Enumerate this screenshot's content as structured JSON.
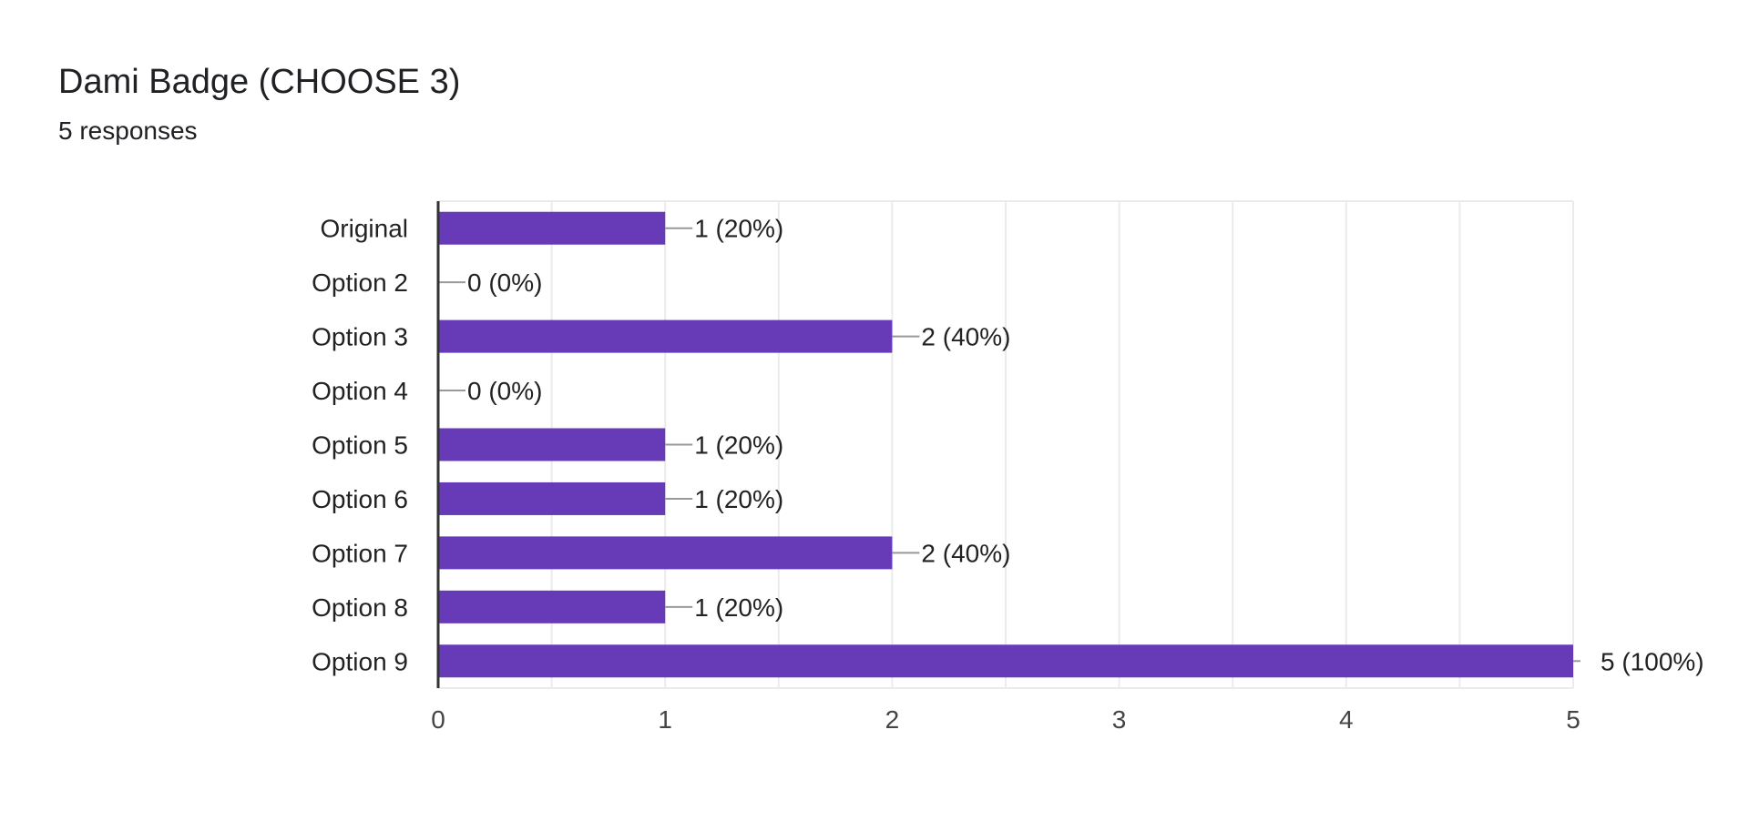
{
  "header": {
    "title": "Dami Badge (CHOOSE 3)",
    "subtitle": "5 responses"
  },
  "colors": {
    "bar": "#673ab7",
    "grid": "#ebebeb",
    "axis": "#333333",
    "leader": "#999999"
  },
  "chart_data": {
    "type": "bar",
    "orientation": "horizontal",
    "title": "",
    "xlabel": "",
    "ylabel": "",
    "categories": [
      "Original",
      "Option 2",
      "Option 3",
      "Option 4",
      "Option 5",
      "Option 6",
      "Option 7",
      "Option 8",
      "Option 9"
    ],
    "values": [
      1,
      0,
      2,
      0,
      1,
      1,
      2,
      1,
      5
    ],
    "value_labels": [
      "1 (20%)",
      "0 (0%)",
      "2 (40%)",
      "0 (0%)",
      "1 (20%)",
      "1 (20%)",
      "2 (40%)",
      "1 (20%)",
      "5 (100%)"
    ],
    "xlim": [
      0,
      5
    ],
    "xticks": [
      0,
      1,
      2,
      3,
      4,
      5
    ],
    "grid": true,
    "legend": "none"
  }
}
